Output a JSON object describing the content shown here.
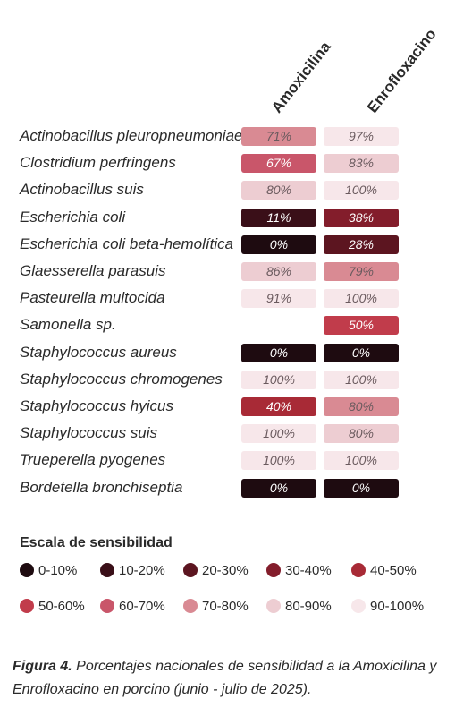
{
  "chart_data": {
    "type": "heatmap",
    "columns": [
      "Amoxicilina",
      "Enrofloxacino"
    ],
    "rows": [
      {
        "name": "Actinobacillus pleuropneumoniae",
        "values": [
          "71%",
          "97%"
        ],
        "levels": [
          7,
          9
        ]
      },
      {
        "name": "Clostridium perfringens",
        "values": [
          "67%",
          "83%"
        ],
        "levels": [
          6,
          8
        ]
      },
      {
        "name": "Actinobacillus suis",
        "values": [
          "80%",
          "100%"
        ],
        "levels": [
          8,
          9
        ]
      },
      {
        "name": "Escherichia coli",
        "values": [
          "11%",
          "38%"
        ],
        "levels": [
          1,
          3
        ]
      },
      {
        "name": "Escherichia coli beta-hemolítica",
        "values": [
          "0%",
          "28%"
        ],
        "levels": [
          0,
          2
        ]
      },
      {
        "name": "Glaesserella parasuis",
        "values": [
          "86%",
          "79%"
        ],
        "levels": [
          8,
          7
        ]
      },
      {
        "name": "Pasteurella multocida",
        "values": [
          "91%",
          "100%"
        ],
        "levels": [
          9,
          9
        ]
      },
      {
        "name": "Samonella sp.",
        "values": [
          "",
          "50%"
        ],
        "levels": [
          null,
          5
        ]
      },
      {
        "name": "Staphylococcus aureus",
        "values": [
          "0%",
          "0%"
        ],
        "levels": [
          0,
          0
        ]
      },
      {
        "name": "Staphylococcus  chromogenes",
        "values": [
          "100%",
          "100%"
        ],
        "levels": [
          9,
          9
        ]
      },
      {
        "name": "Staphylococcus  hyicus",
        "values": [
          "40%",
          "80%"
        ],
        "levels": [
          4,
          7
        ]
      },
      {
        "name": "Staphylococcus  suis",
        "values": [
          "100%",
          "80%"
        ],
        "levels": [
          9,
          8
        ]
      },
      {
        "name": "Trueperella pyogenes",
        "values": [
          "100%",
          "100%"
        ],
        "levels": [
          9,
          9
        ]
      },
      {
        "name": "Bordetella bronchiseptia",
        "values": [
          "0%",
          "0%"
        ],
        "levels": [
          0,
          0
        ]
      }
    ],
    "legend_title": "Escala de sensibilidad",
    "scale": [
      {
        "label": "0-10%",
        "color": "#1e0b10"
      },
      {
        "label": "10-20%",
        "color": "#3a0f18"
      },
      {
        "label": "20-30%",
        "color": "#5c1520"
      },
      {
        "label": "30-40%",
        "color": "#831d2b"
      },
      {
        "label": "40-50%",
        "color": "#a82a36"
      },
      {
        "label": "50-60%",
        "color": "#c13c4b"
      },
      {
        "label": "60-70%",
        "color": "#c9566a"
      },
      {
        "label": "70-80%",
        "color": "#d98a93"
      },
      {
        "label": "80-90%",
        "color": "#edcdd2"
      },
      {
        "label": "90-100%",
        "color": "#f7e7ea"
      }
    ]
  },
  "caption": {
    "label": "Figura 4.",
    "text": "Porcentajes nacionales de sensibilidad a la Amoxicilina y Enrofloxacino en porcino (junio - julio de 2025)."
  }
}
